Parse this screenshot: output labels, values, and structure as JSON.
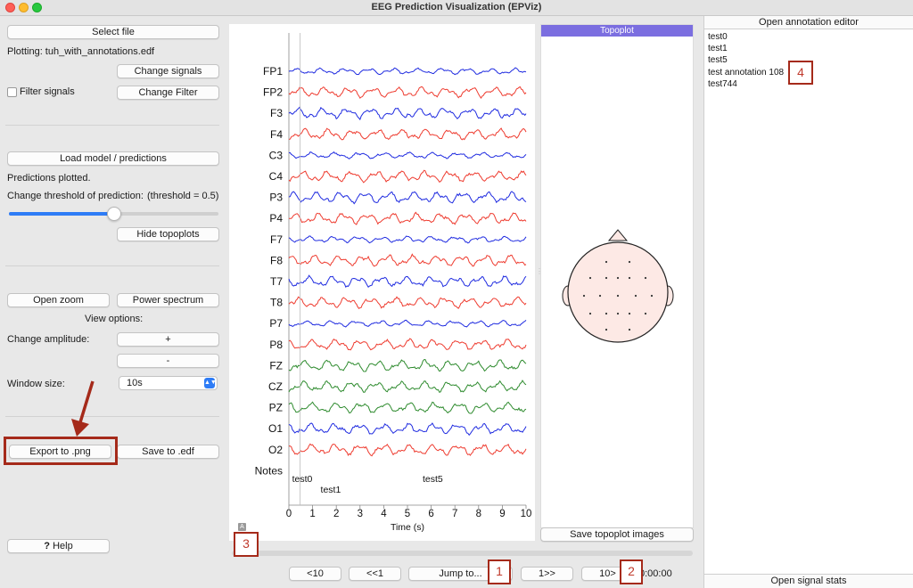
{
  "window": {
    "title": "EEG Prediction Visualization (EPViz)"
  },
  "sidebar": {
    "select_file": "Select file",
    "plotting_label": "Plotting: tuh_with_annotations.edf",
    "change_signals": "Change signals",
    "filter_signals": "Filter signals",
    "filter_checked": false,
    "change_filter": "Change Filter",
    "load_model": "Load model / predictions",
    "predictions_status": "Predictions plotted.",
    "threshold_label": "Change threshold of prediction:",
    "threshold_value_text": "(threshold = 0.5)",
    "threshold_value": 0.5,
    "hide_topoplots": "Hide topoplots",
    "open_zoom": "Open zoom",
    "power_spectrum": "Power spectrum",
    "view_options": "View options:",
    "change_amplitude": "Change amplitude:",
    "amp_plus": "+",
    "amp_minus": "-",
    "window_size_label": "Window size:",
    "window_size_value": "10s",
    "export_png": "Export to .png",
    "save_edf": "Save to .edf",
    "help": "Help",
    "help_icon_glyph": "?"
  },
  "plot": {
    "small_marker": "A",
    "annotation_labels": [
      "test0",
      "test1",
      "test5"
    ]
  },
  "chart_data": {
    "type": "line",
    "channels": [
      "FP1",
      "FP2",
      "F3",
      "F4",
      "C3",
      "C4",
      "P3",
      "P4",
      "F7",
      "F8",
      "T7",
      "T8",
      "P7",
      "P8",
      "FZ",
      "CZ",
      "PZ",
      "O1",
      "O2"
    ],
    "channel_colors": [
      "#1f2be0",
      "#ee3b2f",
      "#1f2be0",
      "#ee3b2f",
      "#1f2be0",
      "#ee3b2f",
      "#1f2be0",
      "#ee3b2f",
      "#1f2be0",
      "#ee3b2f",
      "#1f2be0",
      "#ee3b2f",
      "#1f2be0",
      "#ee3b2f",
      "#2e8b2e",
      "#2e8b2e",
      "#2e8b2e",
      "#1f2be0",
      "#ee3b2f"
    ],
    "notes_label": "Notes",
    "xlabel": "Time (s)",
    "xlim": [
      0,
      10
    ],
    "xticks": [
      "0",
      "1",
      "2",
      "3",
      "4",
      "5",
      "6",
      "7",
      "8",
      "9",
      "10"
    ],
    "annotations": [
      {
        "label": "test0",
        "time": 0.4
      },
      {
        "label": "test1",
        "time": 1.6
      },
      {
        "label": "test5",
        "time": 5.9
      }
    ]
  },
  "topoplot": {
    "title": "Topoplot",
    "save_button": "Save topoplot images",
    "electrode_count": 19
  },
  "annotations_panel": {
    "open_editor": "Open annotation editor",
    "items": [
      "test0",
      "test1",
      "test5",
      "test annotation 108",
      "test744"
    ],
    "open_signal_stats": "Open signal stats"
  },
  "navigation": {
    "back10": "<10",
    "back1": "<<1",
    "jump_to": "Jump to...",
    "fwd1": "1>>",
    "fwd10": "10>",
    "time": "0:00:00"
  },
  "callouts": {
    "c1": "1",
    "c2": "2",
    "c3": "3",
    "c4": "4"
  },
  "colors": {
    "accent": "#2e7cf6",
    "callout": "#a52a1a",
    "topoplot_header": "#7b6ee0"
  }
}
